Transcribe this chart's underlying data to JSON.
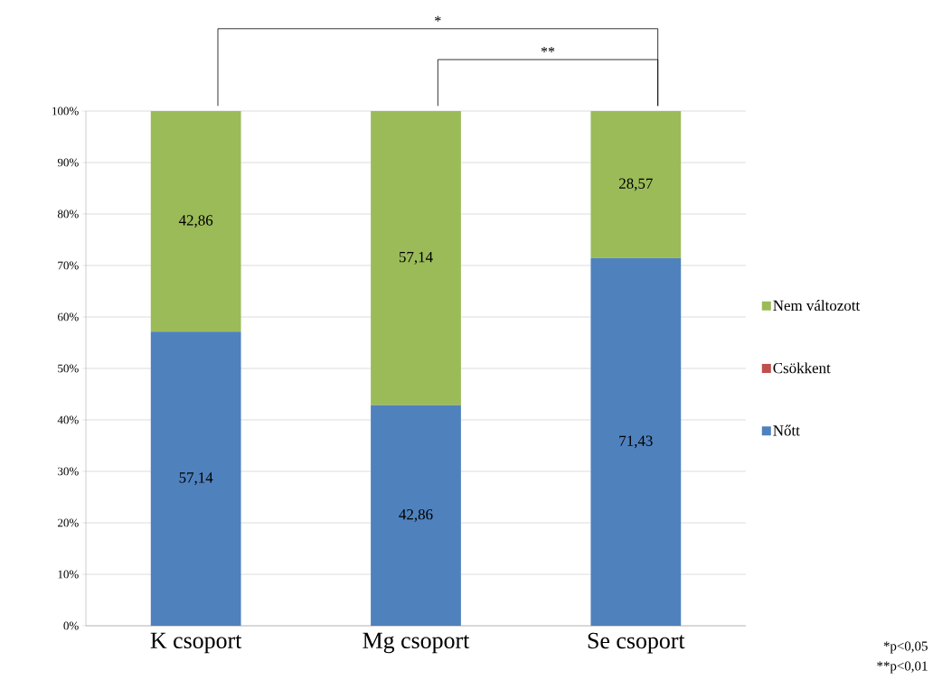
{
  "chart_data": {
    "type": "bar",
    "stacked": true,
    "categories": [
      "K csoport",
      "Mg csoport",
      "Se csoport"
    ],
    "series": [
      {
        "name": "Nőtt",
        "color": "#4f81bd",
        "values": [
          57.14,
          42.86,
          71.43
        ],
        "value_labels": [
          "57,14",
          "42,86",
          "71,43"
        ]
      },
      {
        "name": "Csökkent",
        "color": "#c0504d",
        "values": [
          0,
          0,
          0
        ],
        "value_labels": [
          null,
          null,
          null
        ]
      },
      {
        "name": "Nem változott",
        "color": "#9bbb59",
        "values": [
          42.86,
          57.14,
          28.57
        ],
        "value_labels": [
          "42,86",
          "57,14",
          "28,57"
        ]
      }
    ],
    "ylim": [
      0,
      100
    ],
    "yticks": [
      {
        "value": 0,
        "label": "0%"
      },
      {
        "value": 10,
        "label": "10%"
      },
      {
        "value": 20,
        "label": "20%"
      },
      {
        "value": 30,
        "label": "30%"
      },
      {
        "value": 40,
        "label": "40%"
      },
      {
        "value": 50,
        "label": "50%"
      },
      {
        "value": 60,
        "label": "60%"
      },
      {
        "value": 70,
        "label": "70%"
      },
      {
        "value": 80,
        "label": "80%"
      },
      {
        "value": 90,
        "label": "90%"
      },
      {
        "value": 100,
        "label": "100%"
      }
    ],
    "grid": "y",
    "legend": "right",
    "annotations": [
      "*",
      "**",
      "*p<0,05",
      "**p<0,01"
    ]
  }
}
